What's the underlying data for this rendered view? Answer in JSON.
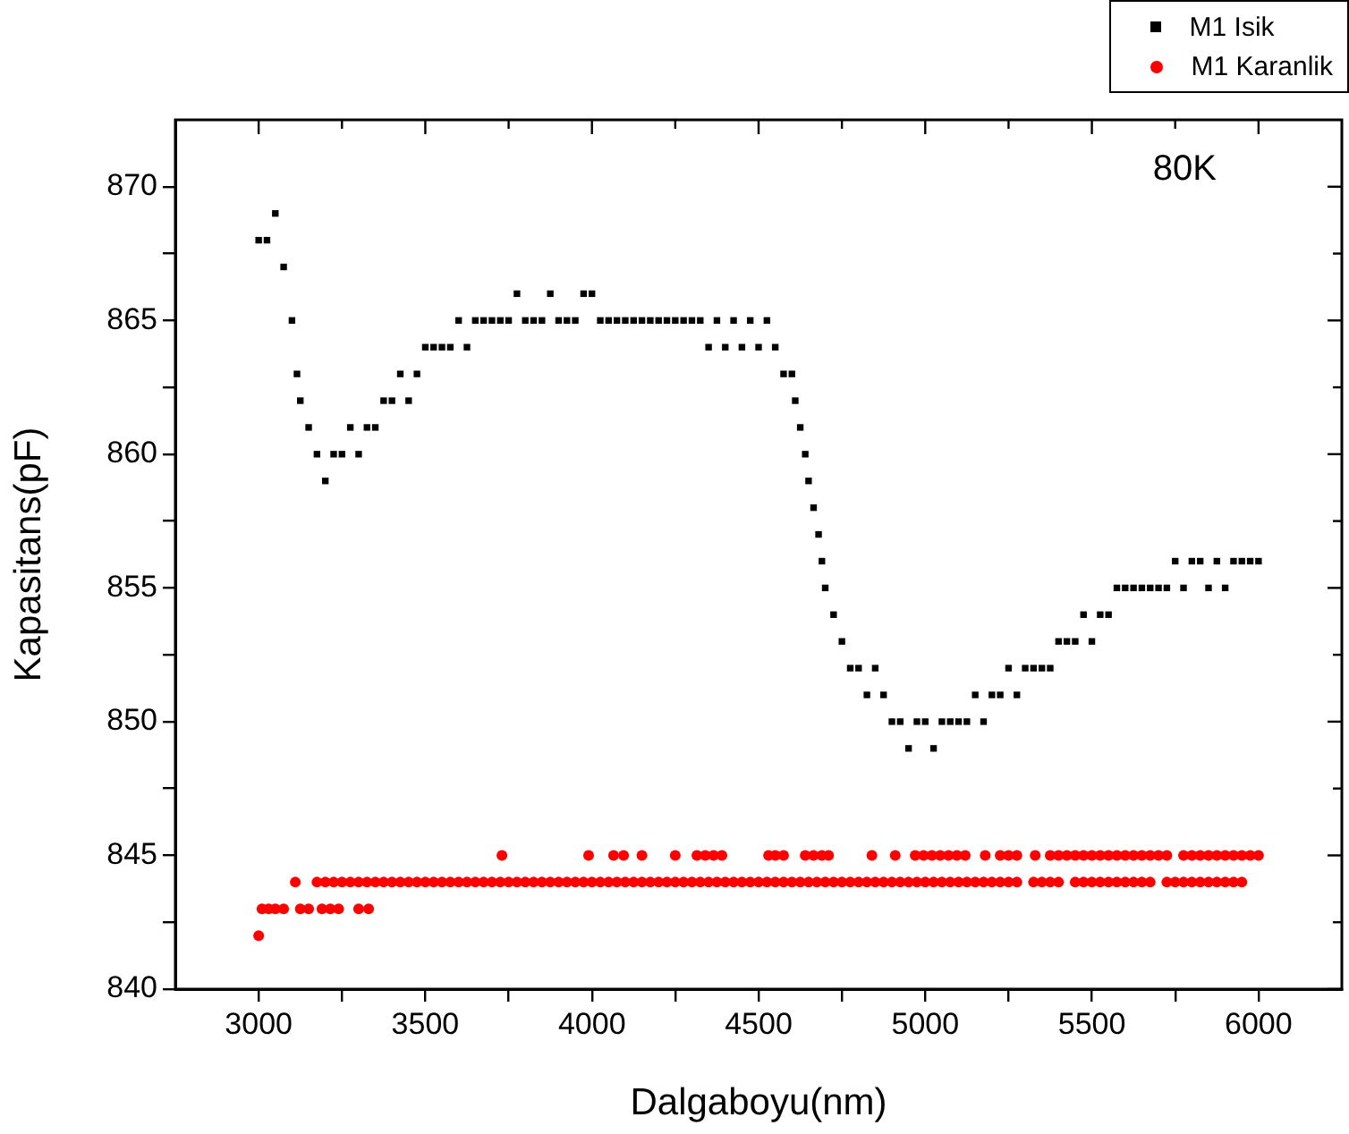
{
  "chart_data": {
    "type": "scatter",
    "xlabel": "Dalgaboyu(nm)",
    "ylabel": "Kapasitans(pF)",
    "annotations": [
      "80K"
    ],
    "xlim": [
      2750,
      6250
    ],
    "ylim": [
      840,
      872.5
    ],
    "xticks": [
      3000,
      {
        "value": 3250,
        "label": null
      },
      3500,
      {
        "value": 3750,
        "label": null
      },
      4000,
      {
        "value": 4250,
        "label": null
      },
      4500,
      {
        "value": 4750,
        "label": null
      },
      5000,
      {
        "value": 5250,
        "label": null
      },
      5500,
      {
        "value": 5750,
        "label": null
      },
      6000
    ],
    "yticks": [
      840,
      {
        "value": 842.5,
        "label": null
      },
      845,
      {
        "value": 847.5,
        "label": null
      },
      850,
      {
        "value": 852.5,
        "label": null
      },
      855,
      {
        "value": 857.5,
        "label": null
      },
      860,
      {
        "value": 862.5,
        "label": null
      },
      865,
      {
        "value": 867.5,
        "label": null
      },
      870
    ],
    "grid": false,
    "legend": "top right",
    "series": [
      {
        "name": "M1 Isik",
        "color": "#000000",
        "marker": "square",
        "x": [
          3000,
          3025,
          3050,
          3075,
          3100,
          3115,
          3125,
          3150,
          3175,
          3200,
          3225,
          3250,
          3275,
          3300,
          3325,
          3350,
          3375,
          3400,
          3425,
          3450,
          3475,
          3500,
          3525,
          3550,
          3575,
          3600,
          3625,
          3650,
          3675,
          3700,
          3725,
          3750,
          3775,
          3800,
          3825,
          3850,
          3875,
          3900,
          3925,
          3950,
          3975,
          4000,
          4025,
          4050,
          4075,
          4100,
          4125,
          4150,
          4175,
          4200,
          4225,
          4250,
          4275,
          4300,
          4325,
          4350,
          4375,
          4400,
          4425,
          4450,
          4475,
          4500,
          4525,
          4550,
          4575,
          4600,
          4610,
          4625,
          4640,
          4650,
          4665,
          4680,
          4690,
          4700,
          4725,
          4750,
          4775,
          4800,
          4825,
          4850,
          4875,
          4900,
          4925,
          4950,
          4975,
          5000,
          5025,
          5050,
          5075,
          5100,
          5125,
          5150,
          5175,
          5200,
          5225,
          5250,
          5275,
          5300,
          5325,
          5350,
          5375,
          5400,
          5425,
          5450,
          5475,
          5500,
          5525,
          5550,
          5575,
          5600,
          5625,
          5650,
          5675,
          5700,
          5725,
          5750,
          5775,
          5800,
          5825,
          5850,
          5875,
          5900,
          5925,
          5950,
          5975,
          6000
        ],
        "values": [
          868,
          868,
          869,
          867,
          865,
          863,
          862,
          861,
          860,
          859,
          860,
          860,
          861,
          860,
          861,
          861,
          862,
          862,
          863,
          862,
          863,
          864,
          864,
          864,
          864,
          865,
          864,
          865,
          865,
          865,
          865,
          865,
          866,
          865,
          865,
          865,
          866,
          865,
          865,
          865,
          866,
          866,
          865,
          865,
          865,
          865,
          865,
          865,
          865,
          865,
          865,
          865,
          865,
          865,
          865,
          864,
          865,
          864,
          865,
          864,
          865,
          864,
          865,
          864,
          863,
          863,
          862,
          861,
          860,
          859,
          858,
          857,
          856,
          855,
          854,
          853,
          852,
          852,
          851,
          852,
          851,
          850,
          850,
          849,
          850,
          850,
          849,
          850,
          850,
          850,
          850,
          851,
          850,
          851,
          851,
          852,
          851,
          852,
          852,
          852,
          852,
          853,
          853,
          853,
          854,
          853,
          854,
          854,
          855,
          855,
          855,
          855,
          855,
          855,
          855,
          856,
          855,
          856,
          856,
          855,
          856,
          855,
          856,
          856,
          856,
          856
        ]
      },
      {
        "name": "M1 Karanlik",
        "color": "#ff0000",
        "marker": "circle",
        "x": [
          3000,
          3010,
          3030,
          3050,
          3075,
          3125,
          3150,
          3190,
          3215,
          3240,
          3300,
          3330,
          3110,
          3175,
          3200,
          3225,
          3250,
          3275,
          3300,
          3325,
          3350,
          3375,
          3400,
          3425,
          3450,
          3475,
          3500,
          3525,
          3550,
          3575,
          3600,
          3625,
          3650,
          3675,
          3700,
          3725,
          3750,
          3775,
          3800,
          3825,
          3850,
          3875,
          3900,
          3925,
          3950,
          3975,
          4000,
          4025,
          4050,
          4075,
          4100,
          4125,
          4150,
          4175,
          4200,
          4225,
          4250,
          4275,
          4300,
          4325,
          4350,
          4375,
          4400,
          4425,
          4450,
          4475,
          4500,
          4525,
          4550,
          4575,
          4600,
          4625,
          4650,
          4675,
          4700,
          4725,
          4750,
          4775,
          4800,
          4825,
          4850,
          4875,
          4900,
          4925,
          4950,
          4975,
          5000,
          5025,
          5050,
          5075,
          5100,
          5125,
          5150,
          5175,
          5200,
          5225,
          5250,
          5275,
          5325,
          5350,
          5375,
          5400,
          5450,
          5475,
          5500,
          5525,
          5550,
          5575,
          5600,
          5625,
          5650,
          5675,
          5725,
          5750,
          5775,
          5800,
          5825,
          5850,
          5875,
          5900,
          5925,
          5950,
          3730,
          3990,
          4065,
          4095,
          4150,
          4250,
          4315,
          4340,
          4365,
          4390,
          4530,
          4550,
          4575,
          4640,
          4665,
          4690,
          4710,
          4840,
          4910,
          4970,
          4995,
          5020,
          5045,
          5070,
          5095,
          5120,
          5180,
          5225,
          5250,
          5275,
          5330,
          5375,
          5400,
          5425,
          5450,
          5475,
          5500,
          5525,
          5550,
          5575,
          5600,
          5625,
          5650,
          5675,
          5700,
          5725,
          5775,
          5800,
          5825,
          5850,
          5875,
          5900,
          5925,
          5950,
          5975,
          6000
        ],
        "values": [
          842,
          843,
          843,
          843,
          843,
          843,
          843,
          843,
          843,
          843,
          843,
          843,
          844,
          844,
          844,
          844,
          844,
          844,
          844,
          844,
          844,
          844,
          844,
          844,
          844,
          844,
          844,
          844,
          844,
          844,
          844,
          844,
          844,
          844,
          844,
          844,
          844,
          844,
          844,
          844,
          844,
          844,
          844,
          844,
          844,
          844,
          844,
          844,
          844,
          844,
          844,
          844,
          844,
          844,
          844,
          844,
          844,
          844,
          844,
          844,
          844,
          844,
          844,
          844,
          844,
          844,
          844,
          844,
          844,
          844,
          844,
          844,
          844,
          844,
          844,
          844,
          844,
          844,
          844,
          844,
          844,
          844,
          844,
          844,
          844,
          844,
          844,
          844,
          844,
          844,
          844,
          844,
          844,
          844,
          844,
          844,
          844,
          844,
          844,
          844,
          844,
          844,
          844,
          844,
          844,
          844,
          844,
          844,
          844,
          844,
          844,
          844,
          844,
          844,
          844,
          844,
          844,
          844,
          844,
          844,
          844,
          844,
          845,
          845,
          845,
          845,
          845,
          845,
          845,
          845,
          845,
          845,
          845,
          845,
          845,
          845,
          845,
          845,
          845,
          845,
          845,
          845,
          845,
          845,
          845,
          845,
          845,
          845,
          845,
          845,
          845,
          845,
          845,
          845,
          845,
          845,
          845,
          845,
          845,
          845,
          845,
          845,
          845,
          845,
          845,
          845,
          845,
          845,
          845,
          845,
          845,
          845,
          845,
          845,
          845,
          845,
          845,
          845
        ]
      }
    ]
  }
}
